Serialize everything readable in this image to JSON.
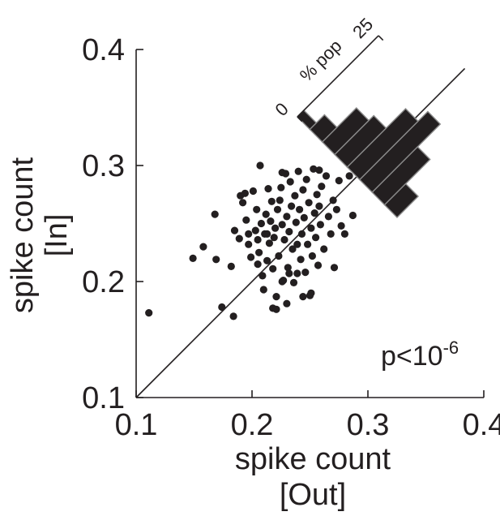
{
  "chart_data": {
    "type": "scatter",
    "title": "",
    "xlabel_line1": "spike count",
    "xlabel_line2": "[Out]",
    "ylabel_line1": "spike count",
    "ylabel_line2": "[In]",
    "xlim": [
      0.1,
      0.4
    ],
    "ylim": [
      0.1,
      0.4
    ],
    "x_ticks": [
      "0.1",
      "0.2",
      "0.3",
      "0.4"
    ],
    "y_ticks": [
      "0.1",
      "0.2",
      "0.3",
      "0.4"
    ],
    "annotation_p": "p<10",
    "annotation_exp": "-6",
    "unity_line": true,
    "grid": false,
    "histogram": {
      "axis_label": "% pop",
      "tick_min": "0",
      "tick_max": "25",
      "max_value": 25,
      "bin_positions": [
        0.19,
        0.21,
        0.23,
        0.25,
        0.27,
        0.29,
        0.31,
        0.33
      ],
      "values": [
        2.0,
        4.5,
        10.5,
        12.0,
        18.0,
        21.0,
        14.0,
        6.5
      ]
    },
    "points": [
      [
        0.111,
        0.173
      ],
      [
        0.149,
        0.22
      ],
      [
        0.158,
        0.23
      ],
      [
        0.168,
        0.258
      ],
      [
        0.169,
        0.219
      ],
      [
        0.174,
        0.178
      ],
      [
        0.182,
        0.213
      ],
      [
        0.184,
        0.17
      ],
      [
        0.185,
        0.244
      ],
      [
        0.189,
        0.237
      ],
      [
        0.19,
        0.274
      ],
      [
        0.192,
        0.268
      ],
      [
        0.194,
        0.276
      ],
      [
        0.195,
        0.253
      ],
      [
        0.197,
        0.232
      ],
      [
        0.199,
        0.221
      ],
      [
        0.201,
        0.278
      ],
      [
        0.203,
        0.244
      ],
      [
        0.204,
        0.262
      ],
      [
        0.205,
        0.236
      ],
      [
        0.206,
        0.225
      ],
      [
        0.207,
        0.3
      ],
      [
        0.208,
        0.25
      ],
      [
        0.209,
        0.205
      ],
      [
        0.21,
        0.193
      ],
      [
        0.211,
        0.241
      ],
      [
        0.212,
        0.258
      ],
      [
        0.213,
        0.218
      ],
      [
        0.214,
        0.28
      ],
      [
        0.215,
        0.233
      ],
      [
        0.216,
        0.252
      ],
      [
        0.217,
        0.269
      ],
      [
        0.218,
        0.211
      ],
      [
        0.219,
        0.238
      ],
      [
        0.22,
        0.246
      ],
      [
        0.221,
        0.187
      ],
      [
        0.222,
        0.262
      ],
      [
        0.223,
        0.222
      ],
      [
        0.224,
        0.27
      ],
      [
        0.225,
        0.281
      ],
      [
        0.226,
        0.249
      ],
      [
        0.227,
        0.201
      ],
      [
        0.228,
        0.236
      ],
      [
        0.229,
        0.293
      ],
      [
        0.23,
        0.256
      ],
      [
        0.231,
        0.212
      ],
      [
        0.232,
        0.243
      ],
      [
        0.233,
        0.286
      ],
      [
        0.234,
        0.265
      ],
      [
        0.235,
        0.228
      ],
      [
        0.236,
        0.199
      ],
      [
        0.237,
        0.274
      ],
      [
        0.238,
        0.251
      ],
      [
        0.239,
        0.232
      ],
      [
        0.24,
        0.295
      ],
      [
        0.241,
        0.262
      ],
      [
        0.242,
        0.219
      ],
      [
        0.243,
        0.241
      ],
      [
        0.244,
        0.279
      ],
      [
        0.245,
        0.255
      ],
      [
        0.246,
        0.208
      ],
      [
        0.247,
        0.288
      ],
      [
        0.248,
        0.232
      ],
      [
        0.249,
        0.268
      ],
      [
        0.25,
        0.188
      ],
      [
        0.251,
        0.246
      ],
      [
        0.252,
        0.222
      ],
      [
        0.253,
        0.297
      ],
      [
        0.254,
        0.259
      ],
      [
        0.255,
        0.238
      ],
      [
        0.256,
        0.275
      ],
      [
        0.257,
        0.214
      ],
      [
        0.258,
        0.265
      ],
      [
        0.259,
        0.249
      ],
      [
        0.26,
        0.282
      ],
      [
        0.262,
        0.228
      ],
      [
        0.264,
        0.291
      ],
      [
        0.266,
        0.256
      ],
      [
        0.268,
        0.241
      ],
      [
        0.27,
        0.27
      ],
      [
        0.271,
        0.212
      ],
      [
        0.273,
        0.262
      ],
      [
        0.275,
        0.287
      ],
      [
        0.277,
        0.248
      ],
      [
        0.28,
        0.241
      ],
      [
        0.284,
        0.291
      ],
      [
        0.287,
        0.257
      ],
      [
        0.197,
        0.241
      ],
      [
        0.205,
        0.215
      ],
      [
        0.213,
        0.241
      ],
      [
        0.218,
        0.177
      ],
      [
        0.221,
        0.176
      ],
      [
        0.226,
        0.2
      ],
      [
        0.23,
        0.181
      ],
      [
        0.232,
        0.207
      ],
      [
        0.239,
        0.207
      ],
      [
        0.244,
        0.187
      ],
      [
        0.251,
        0.19
      ],
      [
        0.258,
        0.296
      ],
      [
        0.226,
        0.294
      ]
    ]
  }
}
